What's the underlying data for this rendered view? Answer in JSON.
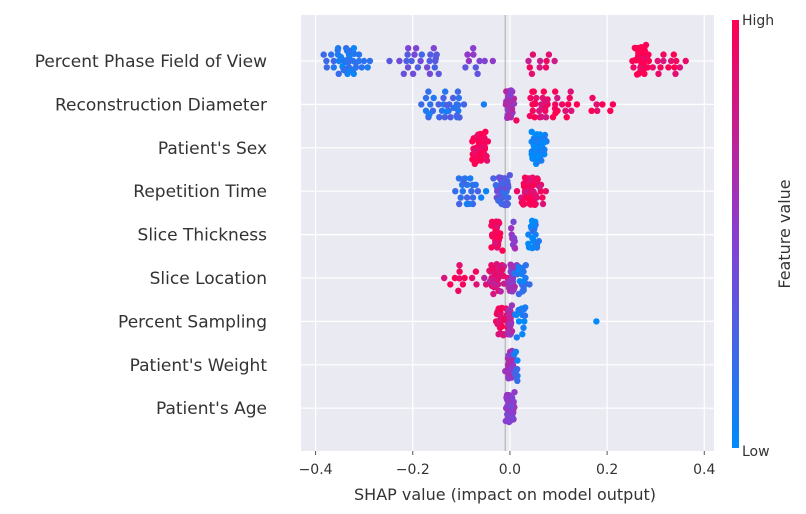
{
  "chart_data": {
    "type": "scatter",
    "subtype": "shap-beeswarm",
    "xlabel": "SHAP value (impact on model output)",
    "xlim": [
      -0.43,
      0.42
    ],
    "x_ticks": [
      -0.4,
      -0.2,
      0.0,
      0.2,
      0.4
    ],
    "x_tick_labels": [
      "−0.4",
      "−0.2",
      "0.0",
      "0.2",
      "0.4"
    ],
    "grid": true,
    "colorbar": {
      "title": "Feature value",
      "high_label": "High",
      "low_label": "Low",
      "low_color": "#008bfb",
      "high_color": "#ff0052"
    },
    "features": [
      {
        "name": "Percent Phase Field of View",
        "clusters": [
          {
            "center": -0.33,
            "spread": 0.05,
            "count": 45,
            "fv": 0.12
          },
          {
            "center": -0.19,
            "spread": 0.04,
            "count": 24,
            "fv": 0.35
          },
          {
            "center": -0.07,
            "spread": 0.04,
            "count": 10,
            "fv": 0.45
          },
          {
            "center": 0.06,
            "spread": 0.03,
            "count": 10,
            "fv": 0.85
          },
          {
            "center": 0.268,
            "spread": 0.012,
            "count": 55,
            "fv": 0.97
          },
          {
            "center": 0.33,
            "spread": 0.035,
            "count": 14,
            "fv": 0.95
          }
        ]
      },
      {
        "name": "Reconstruction Diameter",
        "clusters": [
          {
            "center": -0.14,
            "spread": 0.05,
            "count": 34,
            "fv": 0.18
          },
          {
            "center": 0.0,
            "spread": 0.006,
            "count": 50,
            "fv": 0.6
          },
          {
            "center": 0.07,
            "spread": 0.045,
            "count": 38,
            "fv": 0.92
          },
          {
            "center": 0.19,
            "spread": 0.03,
            "count": 8,
            "fv": 0.97
          }
        ]
      },
      {
        "name": "Patient's Sex",
        "clusters": [
          {
            "center": -0.062,
            "spread": 0.012,
            "count": 60,
            "fv": 0.98
          },
          {
            "center": 0.058,
            "spread": 0.012,
            "count": 60,
            "fv": 0.02
          }
        ]
      },
      {
        "name": "Repetition Time",
        "clusters": [
          {
            "center": -0.08,
            "spread": 0.035,
            "count": 22,
            "fv": 0.15
          },
          {
            "center": -0.015,
            "spread": 0.012,
            "count": 45,
            "fv": 0.3
          },
          {
            "center": 0.045,
            "spread": 0.02,
            "count": 60,
            "fv": 0.9
          }
        ]
      },
      {
        "name": "Slice Thickness",
        "clusters": [
          {
            "center": -0.028,
            "spread": 0.008,
            "count": 45,
            "fv": 0.95
          },
          {
            "center": 0.01,
            "spread": 0.008,
            "count": 10,
            "fv": 0.55
          },
          {
            "center": 0.048,
            "spread": 0.01,
            "count": 25,
            "fv": 0.05
          }
        ]
      },
      {
        "name": "Slice Location",
        "clusters": [
          {
            "center": -0.1,
            "spread": 0.03,
            "count": 12,
            "fv": 0.95
          },
          {
            "center": -0.03,
            "spread": 0.018,
            "count": 40,
            "fv": 0.8
          },
          {
            "center": 0.005,
            "spread": 0.006,
            "count": 35,
            "fv": 0.55
          },
          {
            "center": 0.025,
            "spread": 0.012,
            "count": 20,
            "fv": 0.1
          }
        ]
      },
      {
        "name": "Percent Sampling",
        "clusters": [
          {
            "center": -0.015,
            "spread": 0.015,
            "count": 28,
            "fv": 0.95
          },
          {
            "center": 0.0,
            "spread": 0.004,
            "count": 30,
            "fv": 0.6
          },
          {
            "center": 0.025,
            "spread": 0.008,
            "count": 14,
            "fv": 0.05
          },
          {
            "center": 0.178,
            "spread": 0.0,
            "count": 1,
            "fv": 0.05
          }
        ]
      },
      {
        "name": "Patient's Weight",
        "clusters": [
          {
            "center": 0.0,
            "spread": 0.006,
            "count": 60,
            "fv": 0.6
          },
          {
            "center": 0.013,
            "spread": 0.004,
            "count": 10,
            "fv": 0.15
          }
        ]
      },
      {
        "name": "Patient's Age",
        "clusters": [
          {
            "center": 0.0,
            "spread": 0.007,
            "count": 65,
            "fv": 0.5
          }
        ]
      }
    ]
  }
}
